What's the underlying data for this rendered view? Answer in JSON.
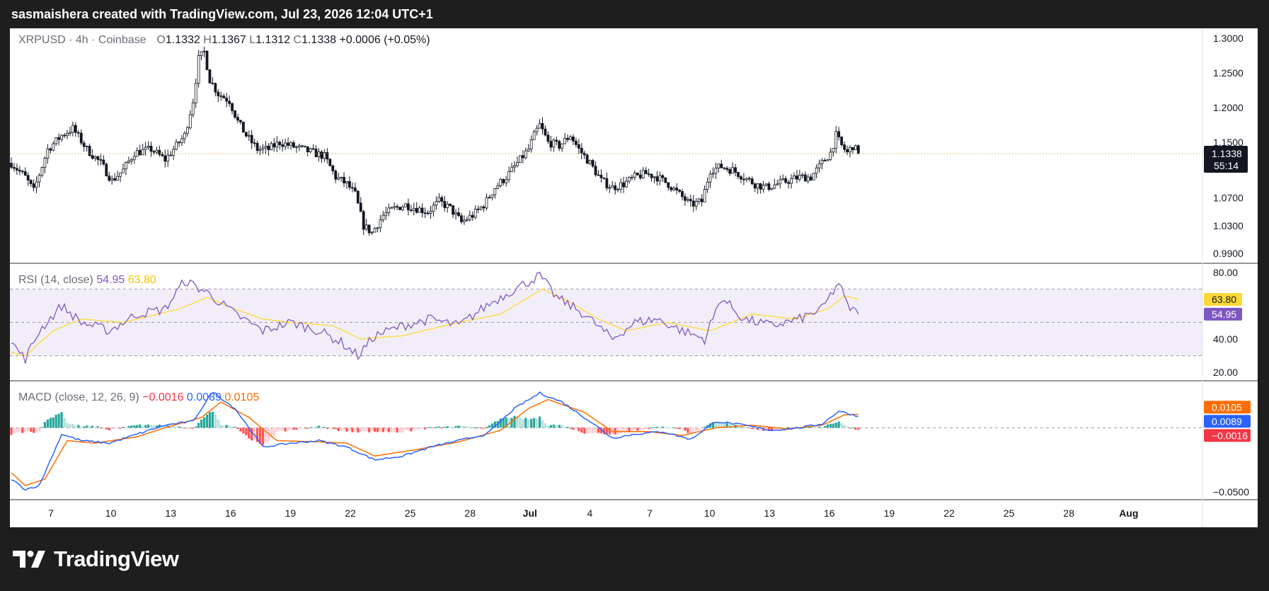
{
  "header": {
    "attribution": "sasmaishera created with TradingView.com, Jul 23, 2026 12:04 UTC+1"
  },
  "brand": {
    "name": "TradingView"
  },
  "colors": {
    "up": "#089981",
    "down": "#f23645",
    "rsi": "#7e57c2",
    "rsi_ma": "#fdd835",
    "macd": "#2962ff",
    "signal": "#ff6d00",
    "hist_up": "#26a69a",
    "hist_down": "#ff5252",
    "last_price": "#131722"
  },
  "legend": {
    "symbol": "XRPUSD · 4h · Coinbase",
    "o_label": "O",
    "o_value": "1.1332",
    "h_label": "H",
    "h_value": "1.1367",
    "l_label": "L",
    "l_value": "1.1312",
    "c_label": "C",
    "c_value": "1.1338",
    "change": "+0.0006 (+0.05%)"
  },
  "rsi_legend": {
    "label": "RSI (14, close)",
    "value": "54.95",
    "ma_value": "63.80"
  },
  "macd_legend": {
    "label": "MACD (close, 12, 26, 9)",
    "hist_value": "−0.0016",
    "macd_value": "0.0089",
    "signal_value": "0.0105"
  },
  "price_axis": {
    "ticks": [
      "1.3000",
      "1.2500",
      "1.2000",
      "1.1500",
      "1.0700",
      "1.0300",
      "0.9900"
    ]
  },
  "price_tag": {
    "value": "1.1338",
    "countdown": "55:14"
  },
  "rsi_axis": {
    "ticks": [
      "80.00",
      "40.00",
      "20.00"
    ],
    "tag_ma": "63.80",
    "tag_rsi": "54.95"
  },
  "macd_axis": {
    "ticks": [
      "−0.0500"
    ],
    "tag_signal": "0.0105",
    "tag_macd": "0.0089",
    "tag_hist": "−0.0016"
  },
  "time_axis": {
    "ticks": [
      "7",
      "10",
      "13",
      "16",
      "19",
      "22",
      "25",
      "28",
      "Jul",
      "4",
      "7",
      "10",
      "13",
      "16",
      "19",
      "22",
      "25",
      "28",
      "Aug"
    ]
  },
  "chart_data": [
    {
      "type": "candlestick",
      "title": "XRPUSD · 4h · Coinbase",
      "ylim": [
        0.98,
        1.31
      ],
      "x_range": [
        "Jun 6",
        "Aug 3"
      ],
      "last_close": 1.1338,
      "anchors": [
        [
          0,
          1.12
        ],
        [
          5,
          1.1
        ],
        [
          8,
          1.08
        ],
        [
          13,
          1.14
        ],
        [
          18,
          1.16
        ],
        [
          22,
          1.17
        ],
        [
          27,
          1.14
        ],
        [
          32,
          1.12
        ],
        [
          36,
          1.095
        ],
        [
          40,
          1.11
        ],
        [
          44,
          1.135
        ],
        [
          50,
          1.14
        ],
        [
          55,
          1.125
        ],
        [
          58,
          1.14
        ],
        [
          62,
          1.16
        ],
        [
          65,
          1.21
        ],
        [
          67,
          1.27
        ],
        [
          69,
          1.28
        ],
        [
          71,
          1.24
        ],
        [
          74,
          1.22
        ],
        [
          78,
          1.21
        ],
        [
          81,
          1.18
        ],
        [
          84,
          1.16
        ],
        [
          88,
          1.14
        ],
        [
          92,
          1.14
        ],
        [
          96,
          1.15
        ],
        [
          100,
          1.145
        ],
        [
          104,
          1.14
        ],
        [
          108,
          1.135
        ],
        [
          112,
          1.13
        ],
        [
          116,
          1.1
        ],
        [
          120,
          1.09
        ],
        [
          123,
          1.075
        ],
        [
          126,
          1.03
        ],
        [
          129,
          1.02
        ],
        [
          133,
          1.045
        ],
        [
          137,
          1.055
        ],
        [
          141,
          1.06
        ],
        [
          145,
          1.055
        ],
        [
          149,
          1.05
        ],
        [
          153,
          1.065
        ],
        [
          157,
          1.055
        ],
        [
          161,
          1.035
        ],
        [
          165,
          1.045
        ],
        [
          169,
          1.06
        ],
        [
          173,
          1.085
        ],
        [
          177,
          1.1
        ],
        [
          181,
          1.12
        ],
        [
          185,
          1.14
        ],
        [
          187,
          1.16
        ],
        [
          189,
          1.175
        ],
        [
          192,
          1.15
        ],
        [
          196,
          1.145
        ],
        [
          200,
          1.16
        ],
        [
          203,
          1.14
        ],
        [
          207,
          1.12
        ],
        [
          211,
          1.095
        ],
        [
          215,
          1.085
        ],
        [
          219,
          1.09
        ],
        [
          223,
          1.1
        ],
        [
          227,
          1.105
        ],
        [
          231,
          1.1
        ],
        [
          235,
          1.09
        ],
        [
          239,
          1.075
        ],
        [
          243,
          1.06
        ],
        [
          247,
          1.065
        ],
        [
          250,
          1.11
        ],
        [
          254,
          1.115
        ],
        [
          258,
          1.11
        ],
        [
          262,
          1.1
        ],
        [
          266,
          1.09
        ],
        [
          270,
          1.085
        ],
        [
          274,
          1.09
        ],
        [
          278,
          1.095
        ],
        [
          282,
          1.1
        ],
        [
          286,
          1.1
        ],
        [
          290,
          1.12
        ],
        [
          293,
          1.135
        ],
        [
          295,
          1.16
        ],
        [
          297,
          1.145
        ],
        [
          299,
          1.135
        ],
        [
          301,
          1.145
        ],
        [
          303,
          1.1338
        ]
      ]
    },
    {
      "type": "line",
      "title": "RSI (14, close)",
      "ylim": [
        15,
        85
      ],
      "bands": [
        30,
        50,
        70
      ],
      "last": {
        "rsi": 54.95,
        "ma": 63.8
      },
      "series": [
        {
          "name": "RSI",
          "anchors": [
            [
              0,
              38
            ],
            [
              5,
              28
            ],
            [
              10,
              45
            ],
            [
              18,
              60
            ],
            [
              25,
              50
            ],
            [
              35,
              45
            ],
            [
              45,
              55
            ],
            [
              55,
              58
            ],
            [
              62,
              75
            ],
            [
              70,
              68
            ],
            [
              80,
              55
            ],
            [
              90,
              45
            ],
            [
              100,
              50
            ],
            [
              110,
              45
            ],
            [
              118,
              38
            ],
            [
              124,
              30
            ],
            [
              130,
              42
            ],
            [
              140,
              48
            ],
            [
              150,
              52
            ],
            [
              160,
              48
            ],
            [
              170,
              60
            ],
            [
              180,
              70
            ],
            [
              189,
              78
            ],
            [
              195,
              65
            ],
            [
              205,
              55
            ],
            [
              215,
              40
            ],
            [
              223,
              50
            ],
            [
              231,
              52
            ],
            [
              240,
              45
            ],
            [
              248,
              40
            ],
            [
              254,
              65
            ],
            [
              262,
              52
            ],
            [
              272,
              48
            ],
            [
              282,
              52
            ],
            [
              290,
              58
            ],
            [
              296,
              74
            ],
            [
              299,
              60
            ],
            [
              303,
              55
            ]
          ]
        },
        {
          "name": "RSI MA",
          "anchors": [
            [
              0,
              32
            ],
            [
              5,
              30
            ],
            [
              15,
              45
            ],
            [
              25,
              52
            ],
            [
              40,
              50
            ],
            [
              60,
              58
            ],
            [
              70,
              65
            ],
            [
              80,
              58
            ],
            [
              90,
              52
            ],
            [
              100,
              50
            ],
            [
              115,
              48
            ],
            [
              125,
              40
            ],
            [
              140,
              42
            ],
            [
              160,
              50
            ],
            [
              175,
              55
            ],
            [
              190,
              70
            ],
            [
              200,
              62
            ],
            [
              210,
              52
            ],
            [
              220,
              45
            ],
            [
              235,
              50
            ],
            [
              250,
              45
            ],
            [
              265,
              55
            ],
            [
              280,
              52
            ],
            [
              292,
              58
            ],
            [
              298,
              66
            ],
            [
              303,
              63.8
            ]
          ]
        }
      ]
    },
    {
      "type": "line",
      "title": "MACD (close, 12, 26, 9)",
      "ylim": [
        -0.056,
        0.036
      ],
      "last": {
        "macd": 0.0089,
        "signal": 0.0105,
        "histogram": -0.0016
      },
      "series": [
        {
          "name": "MACD",
          "anchors": [
            [
              0,
              -0.04
            ],
            [
              5,
              -0.048
            ],
            [
              10,
              -0.045
            ],
            [
              18,
              -0.005
            ],
            [
              25,
              -0.01
            ],
            [
              35,
              -0.012
            ],
            [
              45,
              -0.005
            ],
            [
              55,
              0.002
            ],
            [
              65,
              0.005
            ],
            [
              72,
              0.028
            ],
            [
              80,
              0.015
            ],
            [
              90,
              -0.015
            ],
            [
              100,
              -0.012
            ],
            [
              110,
              -0.01
            ],
            [
              120,
              -0.015
            ],
            [
              130,
              -0.025
            ],
            [
              140,
              -0.022
            ],
            [
              150,
              -0.015
            ],
            [
              160,
              -0.01
            ],
            [
              170,
              -0.005
            ],
            [
              180,
              0.015
            ],
            [
              189,
              0.027
            ],
            [
              197,
              0.02
            ],
            [
              207,
              0.005
            ],
            [
              215,
              -0.008
            ],
            [
              223,
              -0.005
            ],
            [
              233,
              -0.003
            ],
            [
              243,
              -0.009
            ],
            [
              252,
              0.005
            ],
            [
              262,
              0.002
            ],
            [
              272,
              -0.002
            ],
            [
              282,
              0.0
            ],
            [
              290,
              0.003
            ],
            [
              296,
              0.013
            ],
            [
              303,
              0.0089
            ]
          ]
        },
        {
          "name": "Signal",
          "anchors": [
            [
              0,
              -0.035
            ],
            [
              5,
              -0.045
            ],
            [
              12,
              -0.04
            ],
            [
              20,
              -0.01
            ],
            [
              30,
              -0.012
            ],
            [
              45,
              -0.007
            ],
            [
              55,
              0.0
            ],
            [
              68,
              0.008
            ],
            [
              75,
              0.02
            ],
            [
              85,
              0.008
            ],
            [
              95,
              -0.01
            ],
            [
              110,
              -0.011
            ],
            [
              120,
              -0.012
            ],
            [
              130,
              -0.022
            ],
            [
              145,
              -0.017
            ],
            [
              160,
              -0.011
            ],
            [
              175,
              -0.002
            ],
            [
              185,
              0.015
            ],
            [
              192,
              0.022
            ],
            [
              205,
              0.012
            ],
            [
              215,
              -0.003
            ],
            [
              228,
              -0.003
            ],
            [
              240,
              -0.006
            ],
            [
              252,
              0.0
            ],
            [
              265,
              0.002
            ],
            [
              278,
              -0.001
            ],
            [
              290,
              0.002
            ],
            [
              298,
              0.01
            ],
            [
              303,
              0.0105
            ]
          ]
        }
      ]
    }
  ]
}
